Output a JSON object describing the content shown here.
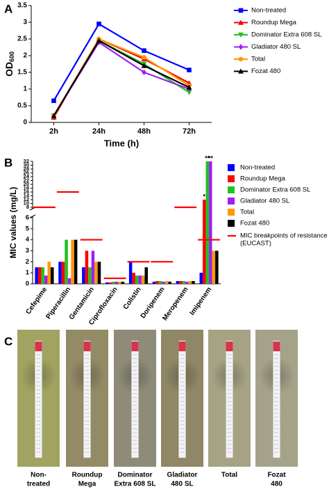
{
  "chart_data": [
    {
      "type": "line",
      "panel_label": "A",
      "xlabel": "Time (h)",
      "ylabel": "OD",
      "ylabel_sub": "600",
      "categories": [
        "2h",
        "24h",
        "48h",
        "72h"
      ],
      "ylim": [
        0,
        3.5
      ],
      "yticks": [
        0,
        0.5,
        1,
        1.5,
        2,
        2.5,
        3,
        3.5
      ],
      "series": [
        {
          "name": "Non-treated",
          "color": "#0000ff",
          "marker": "square",
          "values": [
            0.65,
            2.95,
            2.15,
            1.57
          ]
        },
        {
          "name": "Roundup Mega",
          "color": "#ff0000",
          "marker": "triangle",
          "values": [
            0.15,
            2.5,
            1.9,
            1.18
          ]
        },
        {
          "name": "Dominator Extra 608 SL",
          "color": "#22c022",
          "marker": "triangle-down",
          "values": [
            0.2,
            2.45,
            1.75,
            0.9
          ]
        },
        {
          "name": "Gladiator 480 SL",
          "color": "#a020f0",
          "marker": "diamond",
          "values": [
            0.2,
            2.4,
            1.5,
            1.0
          ]
        },
        {
          "name": "Total",
          "color": "#ff9900",
          "marker": "circle",
          "values": [
            0.2,
            2.5,
            1.95,
            1.1
          ]
        },
        {
          "name": "Fozat 480",
          "color": "#000000",
          "marker": "triangle",
          "values": [
            0.2,
            2.45,
            1.7,
            1.05
          ]
        }
      ]
    },
    {
      "type": "bar",
      "panel_label": "B",
      "ylabel": "MIC values (mg/L)",
      "categories": [
        "Cefepime",
        "Piperacillin",
        "Gentamicin",
        "Ciprofloxacin",
        "Colistin",
        "Doripenem",
        "Meropenem",
        "Imipenem"
      ],
      "ylim": [
        0,
        32
      ],
      "axis_break": [
        6,
        8
      ],
      "yticks": [
        0,
        1,
        2,
        3,
        4,
        5,
        6,
        8,
        10,
        12,
        14,
        16,
        18,
        20,
        22,
        24,
        26,
        28,
        30,
        32
      ],
      "series": [
        {
          "name": "Non-treated",
          "color": "#0000ff",
          "values": [
            1.5,
            2,
            1.5,
            0.125,
            2,
            0.19,
            0.25,
            1
          ]
        },
        {
          "name": "Roundup Mega",
          "color": "#ff0000",
          "values": [
            1.5,
            2,
            3,
            0.125,
            1,
            0.25,
            0.25,
            12
          ]
        },
        {
          "name": "Dominator Extra 608 SL",
          "color": "#22c022",
          "values": [
            1.5,
            4,
            1.5,
            0.19,
            0.75,
            0.25,
            0.25,
            32
          ]
        },
        {
          "name": "Gladiator 480 SL",
          "color": "#a020f0",
          "values": [
            0.75,
            0.5,
            3,
            0.19,
            0.75,
            0.19,
            0.19,
            32
          ]
        },
        {
          "name": "Total",
          "color": "#ff9900",
          "values": [
            2,
            4,
            2,
            0.19,
            0.75,
            0.25,
            0.25,
            3
          ]
        },
        {
          "name": "Fozat 480",
          "color": "#000000",
          "values": [
            1.5,
            4,
            2,
            0.19,
            1.5,
            0.19,
            0.25,
            3
          ]
        }
      ],
      "breakpoints": {
        "name": "MIC breakpoints of resistance",
        "name_note": "(EUCAST)",
        "color": "#ff0000",
        "values": [
          8,
          16,
          4,
          0.5,
          2,
          2,
          8,
          4
        ]
      },
      "annotations": [
        {
          "text": "*",
          "category": 7,
          "series": 1
        },
        {
          "text": "**",
          "category": 7,
          "series": 2
        },
        {
          "text": "**",
          "category": 7,
          "series": 3
        }
      ]
    }
  ],
  "panel_c": {
    "panel_label": "C",
    "plates": [
      {
        "label": [
          "Non-",
          "treated"
        ]
      },
      {
        "label": [
          "Roundup",
          "Mega"
        ]
      },
      {
        "label": [
          "Dominator",
          "Extra 608 SL"
        ]
      },
      {
        "label": [
          "Gladiator",
          "480 SL"
        ]
      },
      {
        "label": [
          "Total"
        ]
      },
      {
        "label": [
          "Fozat",
          "480"
        ]
      }
    ]
  }
}
